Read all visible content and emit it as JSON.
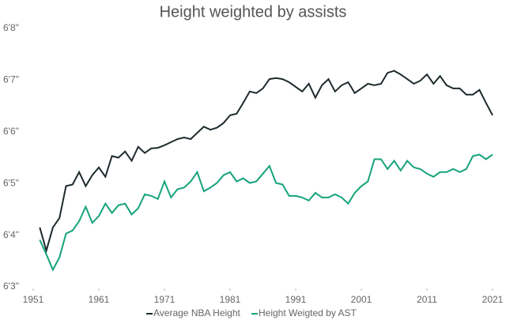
{
  "chart_data": {
    "type": "line",
    "title": "Height weighted by assists",
    "x": [
      1952,
      1953,
      1954,
      1955,
      1956,
      1957,
      1958,
      1959,
      1960,
      1961,
      1962,
      1963,
      1964,
      1965,
      1966,
      1967,
      1968,
      1969,
      1970,
      1971,
      1972,
      1973,
      1974,
      1975,
      1976,
      1977,
      1978,
      1979,
      1980,
      1981,
      1982,
      1983,
      1984,
      1985,
      1986,
      1987,
      1988,
      1989,
      1990,
      1991,
      1992,
      1993,
      1994,
      1995,
      1996,
      1997,
      1998,
      1999,
      2000,
      2001,
      2002,
      2003,
      2004,
      2005,
      2006,
      2007,
      2008,
      2009,
      2010,
      2011,
      2012,
      2013,
      2014,
      2015,
      2016,
      2017,
      2018,
      2019,
      2020,
      2021
    ],
    "series": [
      {
        "name": "Average NBA Height",
        "color": "#1e2b2e",
        "values": [
          76.15,
          75.7,
          76.15,
          76.33,
          76.95,
          76.98,
          77.22,
          76.95,
          77.16,
          77.31,
          77.13,
          77.53,
          77.5,
          77.62,
          77.44,
          77.71,
          77.59,
          77.68,
          77.69,
          77.74,
          77.8,
          77.86,
          77.89,
          77.86,
          77.98,
          78.1,
          78.04,
          78.08,
          78.17,
          78.32,
          78.35,
          78.56,
          78.78,
          78.75,
          78.84,
          79.02,
          79.04,
          79.02,
          78.96,
          78.87,
          78.78,
          78.93,
          78.66,
          78.9,
          79.02,
          78.78,
          78.9,
          78.96,
          78.75,
          78.84,
          78.93,
          78.9,
          78.93,
          79.14,
          79.18,
          79.11,
          79.02,
          78.93,
          78.99,
          79.11,
          78.93,
          79.08,
          78.9,
          78.84,
          78.84,
          78.72,
          78.72,
          78.81,
          78.56,
          78.32
        ]
      },
      {
        "name": "Height Weigted by AST",
        "color": "#15a37b",
        "values": [
          75.91,
          75.63,
          75.33,
          75.57,
          76.03,
          76.09,
          76.27,
          76.55,
          76.24,
          76.37,
          76.61,
          76.43,
          76.58,
          76.61,
          76.4,
          76.52,
          76.79,
          76.76,
          76.7,
          77.04,
          76.73,
          76.89,
          76.92,
          77.04,
          77.22,
          76.85,
          76.92,
          77.01,
          77.16,
          77.22,
          77.04,
          77.1,
          77.01,
          77.04,
          77.19,
          77.34,
          77.01,
          76.98,
          76.76,
          76.76,
          76.73,
          76.67,
          76.82,
          76.73,
          76.73,
          76.79,
          76.73,
          76.61,
          76.82,
          76.95,
          77.04,
          77.47,
          77.47,
          77.28,
          77.44,
          77.25,
          77.44,
          77.31,
          77.28,
          77.19,
          77.13,
          77.22,
          77.22,
          77.28,
          77.22,
          77.28,
          77.53,
          77.56,
          77.47,
          77.56
        ]
      }
    ],
    "xlim": [
      1951,
      2021
    ],
    "xticks": [
      1951,
      1961,
      1971,
      1981,
      1991,
      2001,
      2011,
      2021
    ],
    "ylim": [
      75,
      80
    ],
    "yticks": [
      {
        "value": 75,
        "label": "6'3''"
      },
      {
        "value": 76,
        "label": "6'4''"
      },
      {
        "value": 77,
        "label": "6'5''"
      },
      {
        "value": 78,
        "label": "6'6''"
      },
      {
        "value": 79,
        "label": "6'7''"
      },
      {
        "value": 80,
        "label": "6'8''"
      }
    ],
    "grid": false,
    "legend": "bottom"
  }
}
